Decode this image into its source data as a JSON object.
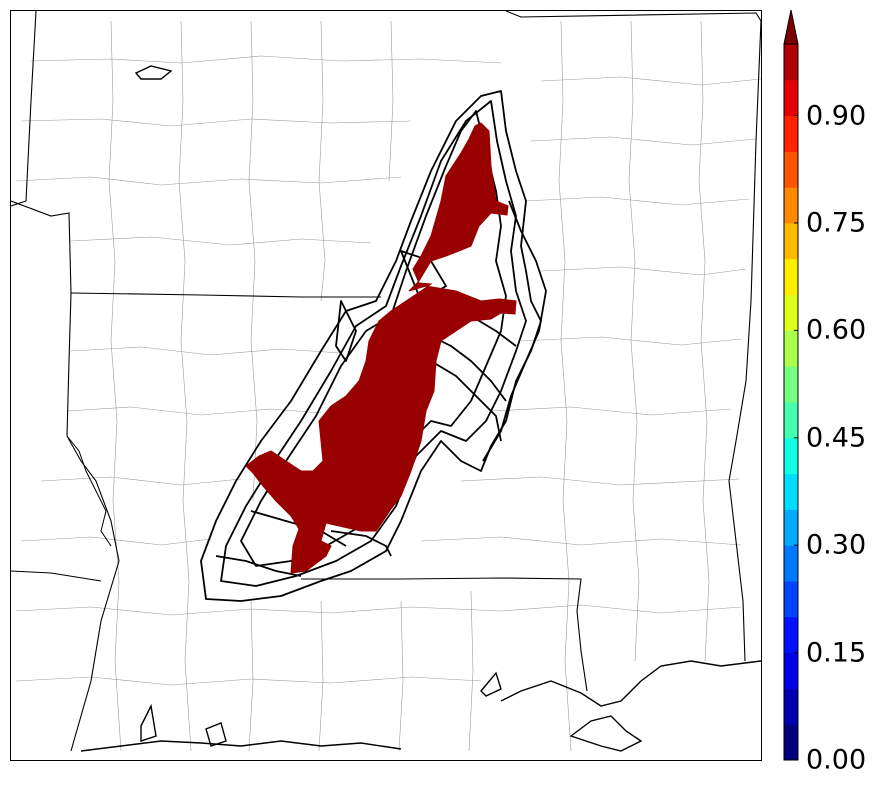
{
  "colorbar": {
    "ticks": [
      {
        "value": 0.0,
        "label": "0.00"
      },
      {
        "value": 0.15,
        "label": "0.15"
      },
      {
        "value": 0.3,
        "label": "0.30"
      },
      {
        "value": 0.45,
        "label": "0.45"
      },
      {
        "value": 0.6,
        "label": "0.60"
      },
      {
        "value": 0.75,
        "label": "0.75"
      },
      {
        "value": 0.9,
        "label": "0.90"
      }
    ],
    "range": [
      0.0,
      1.0
    ],
    "levels": 20,
    "extend": "max",
    "colormap": "jet",
    "colors": [
      "#00007f",
      "#0000b2",
      "#0000e5",
      "#0011ff",
      "#0044ff",
      "#0077ff",
      "#00aaff",
      "#00ddff",
      "#11ffe5",
      "#44ffb2",
      "#77ff7f",
      "#aaff4c",
      "#ddff19",
      "#ffee00",
      "#ffbb00",
      "#ff8800",
      "#ff5500",
      "#ff2200",
      "#e50000",
      "#b20000"
    ],
    "extend_color": "#7f0000"
  },
  "map": {
    "fill_color": "#990000",
    "contour_color": "#000000",
    "boundary_color": "#000000"
  }
}
